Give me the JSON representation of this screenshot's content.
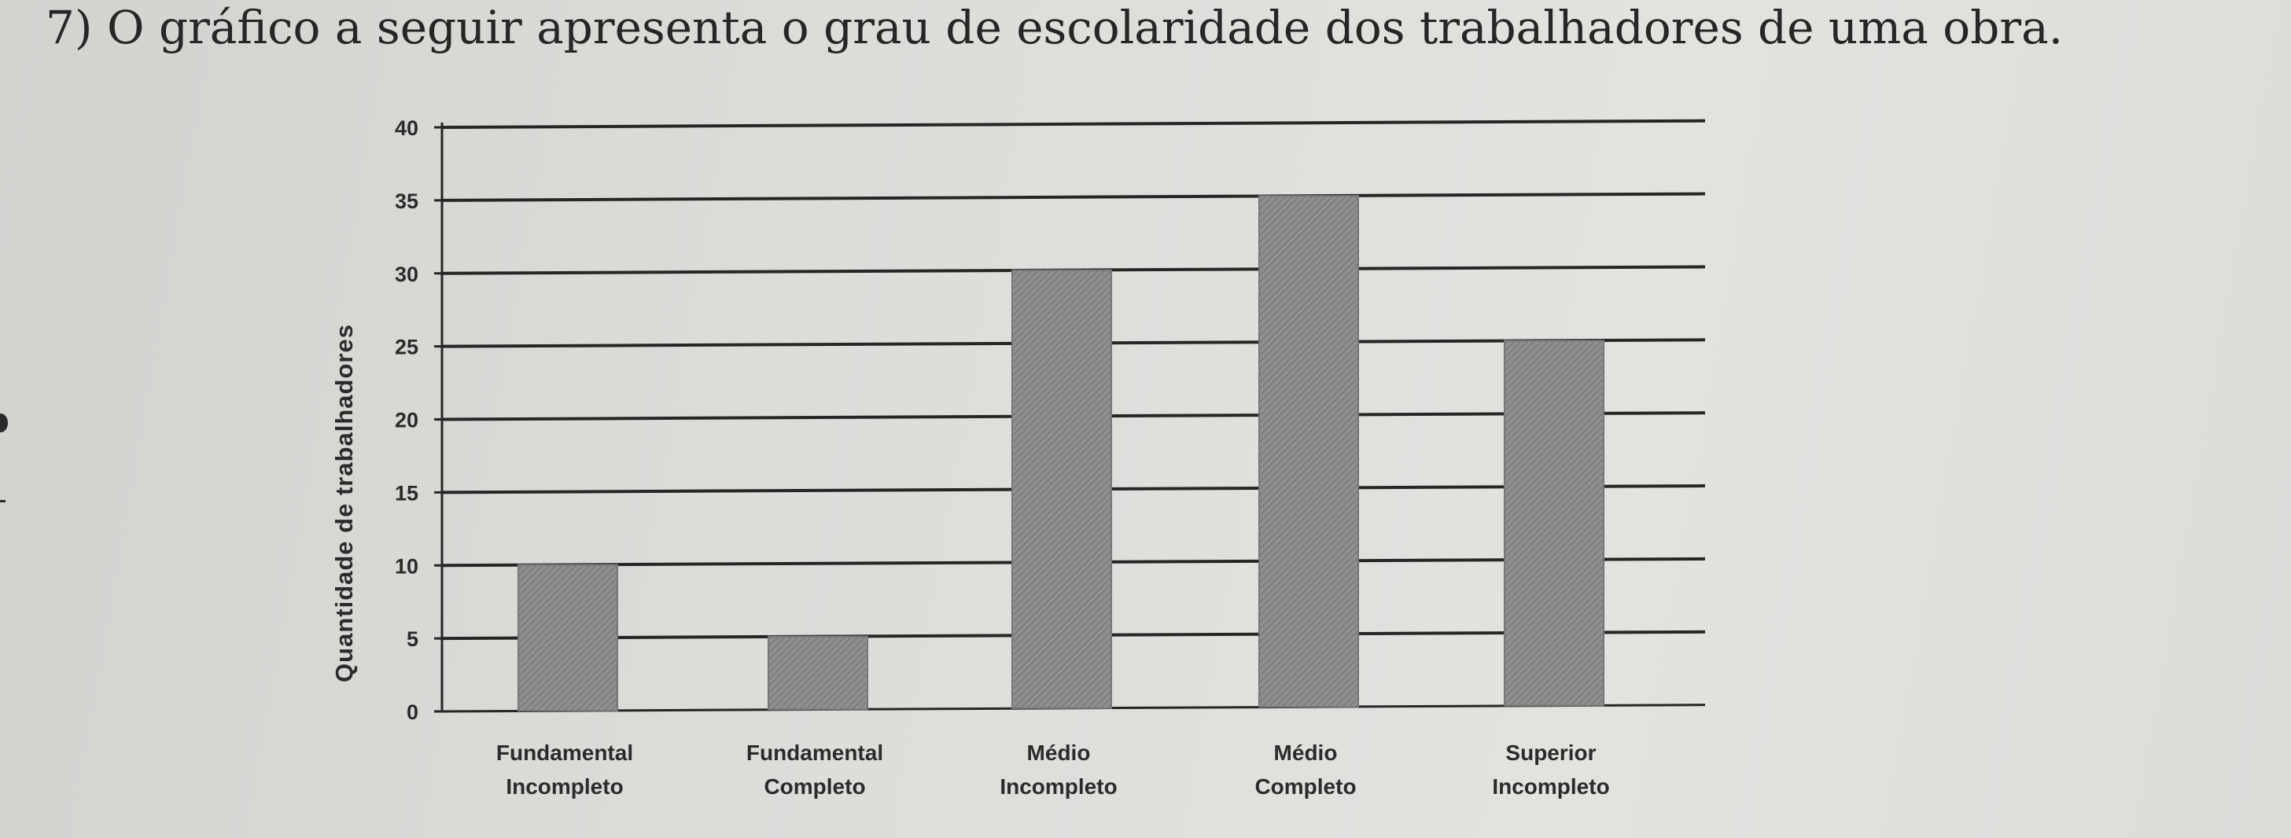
{
  "question": {
    "text": "7) O gráfico a seguir apresenta o grau de escolaridade dos trabalhadores de uma obra."
  },
  "chart_data": {
    "type": "bar",
    "title": "",
    "xlabel": "",
    "ylabel": "Quantidade de trabalhadores",
    "categories": [
      [
        "Fundamental",
        "Incompleto"
      ],
      [
        "Fundamental",
        "Completo"
      ],
      [
        "Médio",
        "Incompleto"
      ],
      [
        "Médio",
        "Completo"
      ],
      [
        "Superior",
        "Incompleto"
      ]
    ],
    "values": [
      10,
      5,
      30,
      35,
      25
    ],
    "yticks": [
      "0",
      "5",
      "10",
      "15",
      "20",
      "25",
      "30",
      "35",
      "40"
    ],
    "ylim": [
      0,
      40
    ],
    "grid": true,
    "legend": "none",
    "colors": {
      "bar": "#8a8a8a",
      "gridline": "#262626",
      "text": "#2b2b2b"
    }
  }
}
